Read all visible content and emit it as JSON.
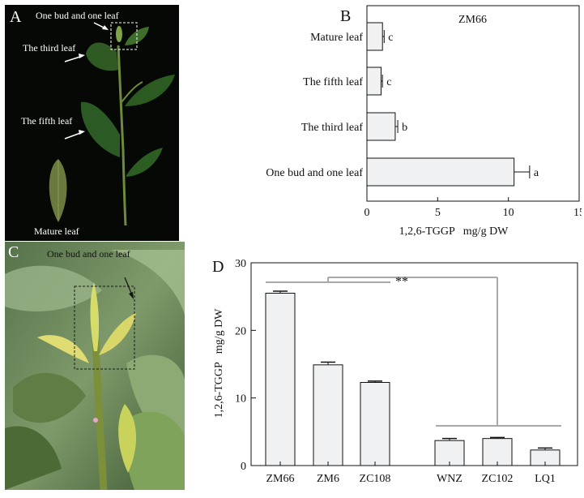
{
  "panels": {
    "a": {
      "letter": "A",
      "labels": {
        "bud": "One bud and one leaf",
        "third": "The third leaf",
        "fifth": "The fifth leaf",
        "mature": "Mature leaf"
      }
    },
    "c": {
      "letter": "C",
      "label": "One bud and one leaf"
    }
  },
  "chart_data": [
    {
      "panel": "B",
      "type": "bar",
      "orientation": "horizontal",
      "title": "ZM66",
      "xlabel": "1,2,6-TGGP   mg/g DW",
      "ylabel": "",
      "categories": [
        "Mature leaf",
        "The fifth leaf",
        "The third leaf",
        "One bud and one leaf"
      ],
      "values": [
        1.1,
        1.0,
        2.0,
        10.4
      ],
      "errors": [
        0.12,
        0.1,
        0.18,
        1.1
      ],
      "significance_letters": [
        "c",
        "c",
        "b",
        "a"
      ],
      "xlim": [
        0,
        15
      ],
      "xticks": [
        "0",
        "5",
        "10",
        "15"
      ],
      "bar_color": "#f0f1f3",
      "grid": false
    },
    {
      "panel": "D",
      "type": "bar",
      "orientation": "vertical",
      "title": "",
      "xlabel": "",
      "ylabel": "1,2,6-TGGP   mg/g DW",
      "categories": [
        "ZM66",
        "ZM6",
        "ZC108",
        "WNZ",
        "ZC102",
        "LQ1"
      ],
      "values": [
        25.5,
        14.9,
        12.3,
        3.7,
        4.0,
        2.3
      ],
      "errors": [
        0.3,
        0.4,
        0.2,
        0.3,
        0.15,
        0.3
      ],
      "ylim": [
        0,
        30
      ],
      "yticks": [
        "0",
        "10",
        "20",
        "30"
      ],
      "significance": "**",
      "bar_color": "#f0f1f3",
      "grid": false
    }
  ]
}
